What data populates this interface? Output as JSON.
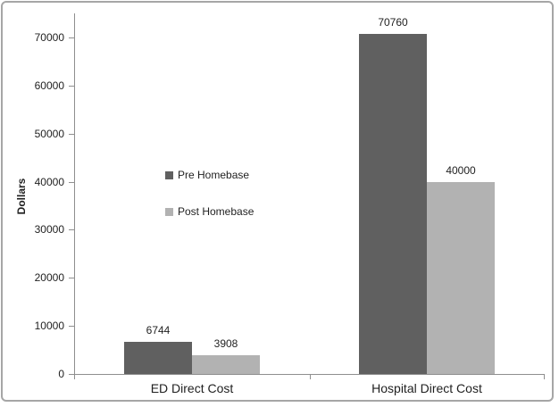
{
  "chart_data": {
    "type": "bar",
    "title": "",
    "xlabel": "",
    "ylabel": "Dollars",
    "categories": [
      "ED Direct Cost",
      "Hospital Direct Cost"
    ],
    "series": [
      {
        "name": "Pre Homebase",
        "values": [
          6744,
          70760
        ],
        "color": "#606060"
      },
      {
        "name": "Post Homebase",
        "values": [
          3908,
          40000
        ],
        "color": "#b2b2b2"
      }
    ],
    "data_labels": true,
    "ylim": [
      0,
      75000
    ],
    "y_ticks": [
      0,
      10000,
      20000,
      30000,
      40000,
      50000,
      60000,
      70000
    ],
    "grid": false,
    "legend_position": "inside-left-middle",
    "colors": {
      "axis": "#8f8f8f",
      "frame_border": "#a6a6a6",
      "text": "#1f1f1f",
      "background": "#ffffff"
    }
  }
}
